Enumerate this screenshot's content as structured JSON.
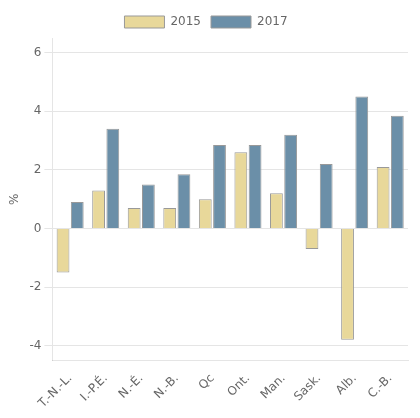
{
  "chart_data": {
    "type": "bar",
    "categories": [
      "T.-N.-L.",
      "I.-P.É.",
      "N.-É.",
      "N.-B.",
      "Qc",
      "Ont.",
      "Man.",
      "Sask.",
      "Alb.",
      "C.-B."
    ],
    "series": [
      {
        "name": "2015",
        "color": "#e8d89a",
        "values": [
          -1.5,
          1.3,
          0.7,
          0.7,
          1.0,
          2.6,
          1.2,
          -0.7,
          -3.8,
          2.1
        ]
      },
      {
        "name": "2017",
        "color": "#6b8fa8",
        "values": [
          0.9,
          3.4,
          1.5,
          1.85,
          2.85,
          2.85,
          3.2,
          2.2,
          4.5,
          3.85
        ]
      }
    ],
    "ylabel": "%",
    "ylim": [
      -4.5,
      6.5
    ],
    "yticks": [
      -4,
      -2,
      0,
      2,
      4,
      6
    ],
    "grid": true,
    "legend": "top"
  }
}
